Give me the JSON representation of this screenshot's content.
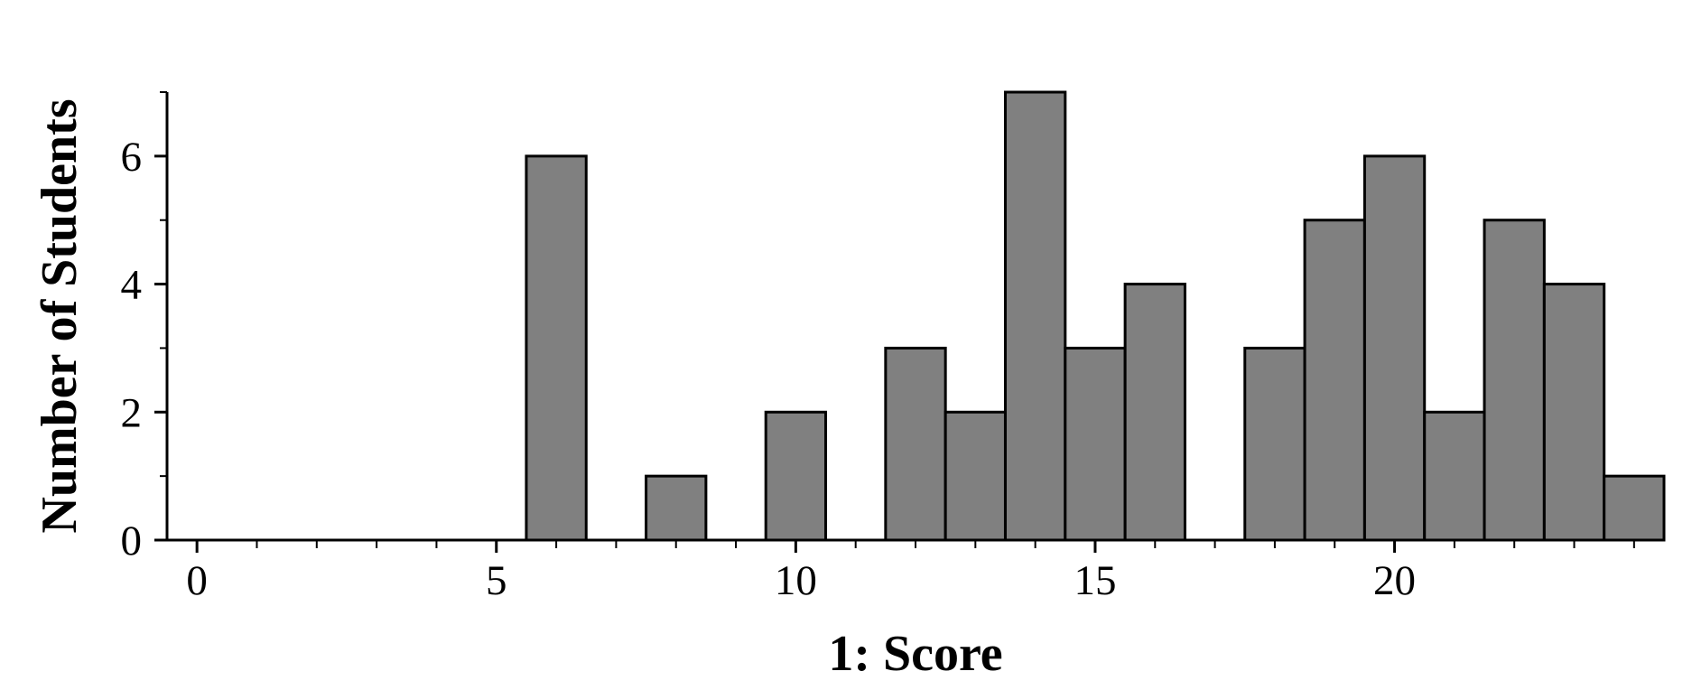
{
  "chart_data": {
    "type": "histogram",
    "xlabel": "1: Score",
    "ylabel": "Number of Students",
    "bins": [
      -0.5,
      0.5,
      1.5,
      2.5,
      3.5,
      4.5,
      5.5,
      6.5,
      7.5,
      8.5,
      9.5,
      10.5,
      11.5,
      12.5,
      13.5,
      14.5,
      15.5,
      16.5,
      17.5,
      18.5,
      19.5,
      20.5,
      21.5,
      22.5,
      23.5,
      24.5
    ],
    "values": [
      0,
      0,
      0,
      0,
      0,
      0,
      6,
      0,
      1,
      0,
      2,
      0,
      3,
      2,
      7,
      3,
      4,
      0,
      3,
      5,
      6,
      2,
      5,
      4,
      1
    ],
    "color": "#808080",
    "xlim": [
      -0.5,
      24.5
    ],
    "xticks": [
      0,
      5,
      10,
      15,
      20
    ],
    "ylim": [
      0,
      7
    ],
    "yticks": [
      0,
      2,
      4,
      6
    ]
  }
}
